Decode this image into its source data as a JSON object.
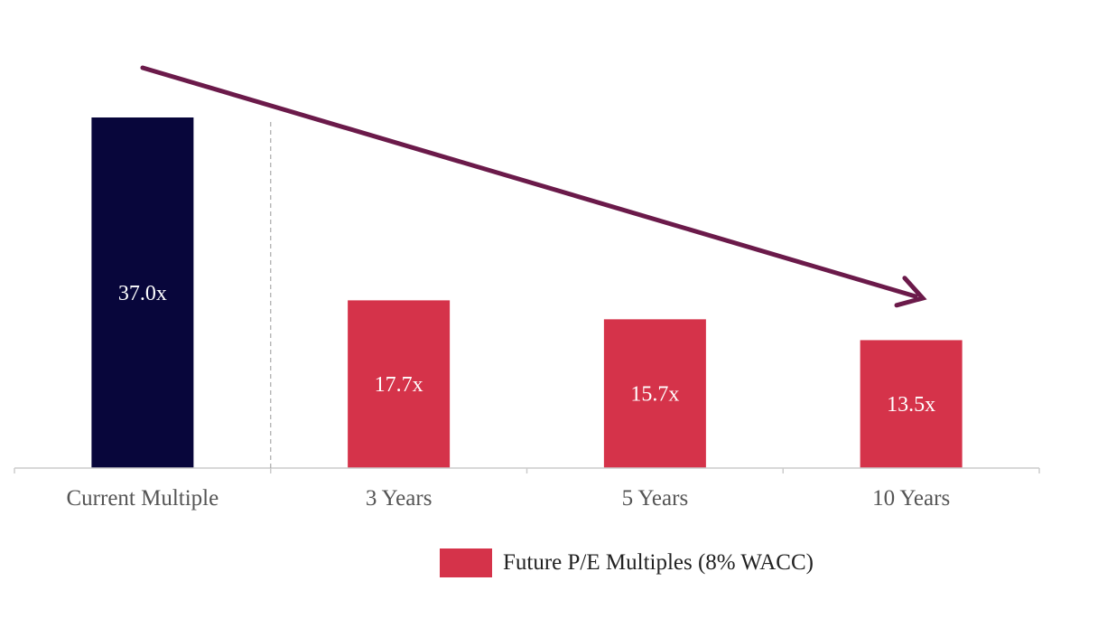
{
  "chart_data": {
    "type": "bar",
    "categories": [
      "Current Multiple",
      "3 Years",
      "5 Years",
      "10 Years"
    ],
    "values": [
      37.0,
      17.7,
      15.7,
      13.5
    ],
    "data_labels": [
      "37.0x",
      "17.7x",
      "15.7x",
      "13.5x"
    ],
    "series": [
      {
        "values": [
          37.0,
          null,
          null,
          null
        ]
      },
      {
        "name": "Future P/E Multiples (8% WACC)",
        "values": [
          null,
          17.7,
          15.7,
          13.5
        ]
      }
    ],
    "title": "",
    "xlabel": "",
    "ylabel": "",
    "ylim": [
      0,
      43
    ],
    "grid": false,
    "legend_placement": "bottom-center",
    "annotations": [
      "downward-trend-arrow",
      "dashed-separator-after-current-multiple"
    ]
  },
  "legend": {
    "label": "Future P/E Multiples (8% WACC)"
  },
  "colors": {
    "current_bar": "#08063b",
    "future_bar": "#d5334a",
    "arrow": "#6b1a4a",
    "axis": "#cccccc",
    "separator": "#aaaaaa",
    "tick_label": "#555555",
    "bar_label": "#ffffff"
  }
}
